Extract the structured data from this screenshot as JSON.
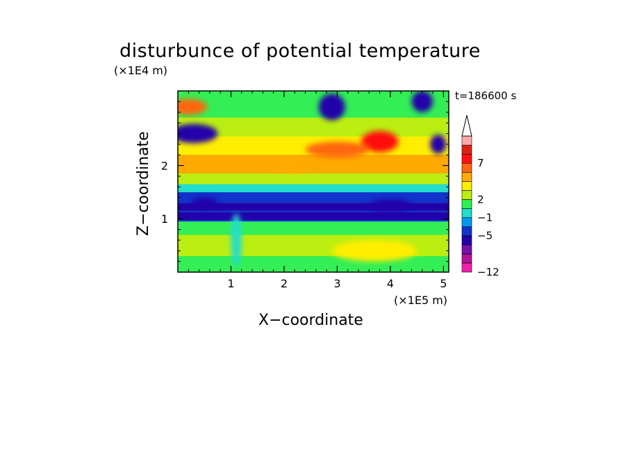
{
  "chart_data": {
    "type": "heatmap",
    "title": "disturbunce of potential temperature",
    "time_label": "t=186600 s",
    "xlabel": "X−coordinate",
    "ylabel": "Z−coordinate",
    "x_unit": "(×1E5 m)",
    "y_unit": "(×1E4 m)",
    "xlim": [
      0,
      5.1
    ],
    "ylim": [
      0,
      3.4
    ],
    "x_ticks": [
      {
        "value": 1,
        "label": "1"
      },
      {
        "value": 2,
        "label": "2"
      },
      {
        "value": 3,
        "label": "3"
      },
      {
        "value": 4,
        "label": "4"
      },
      {
        "value": 5,
        "label": "5"
      }
    ],
    "y_ticks": [
      {
        "value": 1,
        "label": "1"
      },
      {
        "value": 2,
        "label": "2"
      }
    ],
    "colorbar": {
      "colors": [
        "#ee22aa",
        "#b4119a",
        "#7711aa",
        "#2200aa",
        "#1133cc",
        "#0099ee",
        "#22ddcc",
        "#33ee55",
        "#bbee11",
        "#ffee00",
        "#ffaa00",
        "#ff6611",
        "#ff1111",
        "#dd2211",
        "#ffaaaa"
      ],
      "labels": [
        {
          "value": -12,
          "label": "−12"
        },
        {
          "value": -5,
          "label": "−5"
        },
        {
          "value": -1,
          "label": "−1"
        },
        {
          "value": 2,
          "label": "2"
        },
        {
          "value": 7,
          "label": "7"
        }
      ],
      "extend": "max"
    },
    "field_bands": [
      {
        "z": [
          0.0,
          0.3
        ],
        "level": 7
      },
      {
        "z": [
          0.3,
          0.7
        ],
        "level": 8
      },
      {
        "z": [
          0.7,
          0.95
        ],
        "level": 7
      },
      {
        "z": [
          0.95,
          1.15
        ],
        "level": 4
      },
      {
        "z": [
          1.15,
          1.3
        ],
        "level": 3
      },
      {
        "z": [
          1.3,
          1.5
        ],
        "level": 4
      },
      {
        "z": [
          1.5,
          1.65
        ],
        "level": 6
      },
      {
        "z": [
          1.65,
          1.85
        ],
        "level": 8
      },
      {
        "z": [
          1.85,
          2.2
        ],
        "level": 10
      },
      {
        "z": [
          2.2,
          2.55
        ],
        "level": 9
      },
      {
        "z": [
          2.55,
          2.9
        ],
        "level": 8
      },
      {
        "z": [
          2.9,
          3.4
        ],
        "level": 7
      }
    ],
    "field_blobs": [
      {
        "x": 0.2,
        "z": 3.1,
        "rx": 0.35,
        "rz": 0.15,
        "level": 11
      },
      {
        "x": 0.3,
        "z": 2.6,
        "rx": 0.45,
        "rz": 0.18,
        "level": 3
      },
      {
        "x": 2.9,
        "z": 3.1,
        "rx": 0.25,
        "rz": 0.25,
        "level": 3
      },
      {
        "x": 4.6,
        "z": 3.2,
        "rx": 0.2,
        "rz": 0.2,
        "level": 3
      },
      {
        "x": 4.9,
        "z": 2.4,
        "rx": 0.15,
        "rz": 0.18,
        "level": 3
      },
      {
        "x": 3.8,
        "z": 2.45,
        "rx": 0.35,
        "rz": 0.2,
        "level": 12
      },
      {
        "x": 3.0,
        "z": 2.3,
        "rx": 0.6,
        "rz": 0.15,
        "level": 11
      },
      {
        "x": 2.1,
        "z": 2.0,
        "rx": 0.4,
        "rz": 0.12,
        "level": 10
      },
      {
        "x": 4.0,
        "z": 1.25,
        "rx": 0.4,
        "rz": 0.12,
        "level": 3
      },
      {
        "x": 0.5,
        "z": 1.3,
        "rx": 0.25,
        "rz": 0.1,
        "level": 3
      },
      {
        "x": 3.7,
        "z": 0.4,
        "rx": 0.8,
        "rz": 0.2,
        "level": 9
      },
      {
        "x": 1.1,
        "z": 0.6,
        "rx": 0.1,
        "rz": 0.5,
        "level": 6
      }
    ]
  }
}
